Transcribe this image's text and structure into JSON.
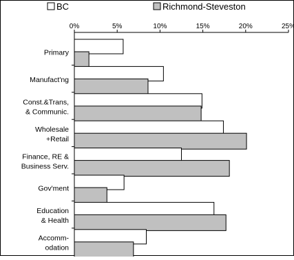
{
  "chart_data": {
    "type": "bar",
    "orientation": "horizontal",
    "categories": [
      [
        "Primary"
      ],
      [
        "Manufact'ng"
      ],
      [
        "Const.&Trans,",
        "& Communic."
      ],
      [
        "Wholesale",
        "+Retail"
      ],
      [
        "Finance, RE &",
        "Business Serv."
      ],
      [
        "Gov'ment"
      ],
      [
        "Education",
        "& Health"
      ],
      [
        "Accomm-",
        "odation"
      ]
    ],
    "series": [
      {
        "name": "BC",
        "color": "#ffffff",
        "values": [
          5.7,
          10.4,
          14.9,
          17.4,
          12.5,
          5.8,
          16.3,
          8.4
        ]
      },
      {
        "name": "Richmond-Steveston",
        "color": "#c0c0c0",
        "values": [
          1.7,
          8.6,
          14.8,
          20.1,
          18.1,
          3.8,
          17.7,
          6.9
        ]
      }
    ],
    "xlim": [
      0,
      25
    ],
    "x_ticks": [
      "0%",
      "5%",
      "10%",
      "15%",
      "20%",
      "25%"
    ],
    "x_axis_position": "top",
    "legend_position": "top",
    "grid": false,
    "title": "",
    "xlabel": "",
    "ylabel": ""
  }
}
